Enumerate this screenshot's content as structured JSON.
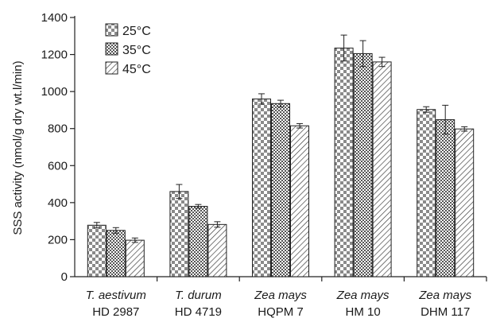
{
  "chart_data": {
    "type": "bar",
    "title": "",
    "ylabel": "SSS activity (nmol/g dry wt.l/min)",
    "xlabel": "",
    "ylim": [
      0,
      1400
    ],
    "yticks": [
      0,
      200,
      400,
      600,
      800,
      1000,
      1200,
      1400
    ],
    "grid": false,
    "legend_position": "top-left",
    "categories": [
      {
        "line1": "T. aestivum",
        "line2": "HD 2987"
      },
      {
        "line1": "T. durum",
        "line2": "HD 4719"
      },
      {
        "line1": "Zea mays",
        "line2": "HQPM 7"
      },
      {
        "line1": "Zea mays",
        "line2": "HM 10"
      },
      {
        "line1": "Zea mays",
        "line2": "DHM 117"
      }
    ],
    "series": [
      {
        "name": "25°C",
        "pattern": "checker",
        "values": [
          278,
          460,
          960,
          1235,
          903
        ],
        "errors": [
          15,
          38,
          28,
          70,
          15
        ]
      },
      {
        "name": "35°C",
        "pattern": "dots",
        "values": [
          250,
          380,
          935,
          1205,
          848
        ],
        "errors": [
          15,
          10,
          18,
          70,
          78
        ]
      },
      {
        "name": "45°C",
        "pattern": "hatch",
        "values": [
          197,
          282,
          815,
          1160,
          798
        ],
        "errors": [
          12,
          15,
          12,
          25,
          12
        ]
      }
    ]
  }
}
